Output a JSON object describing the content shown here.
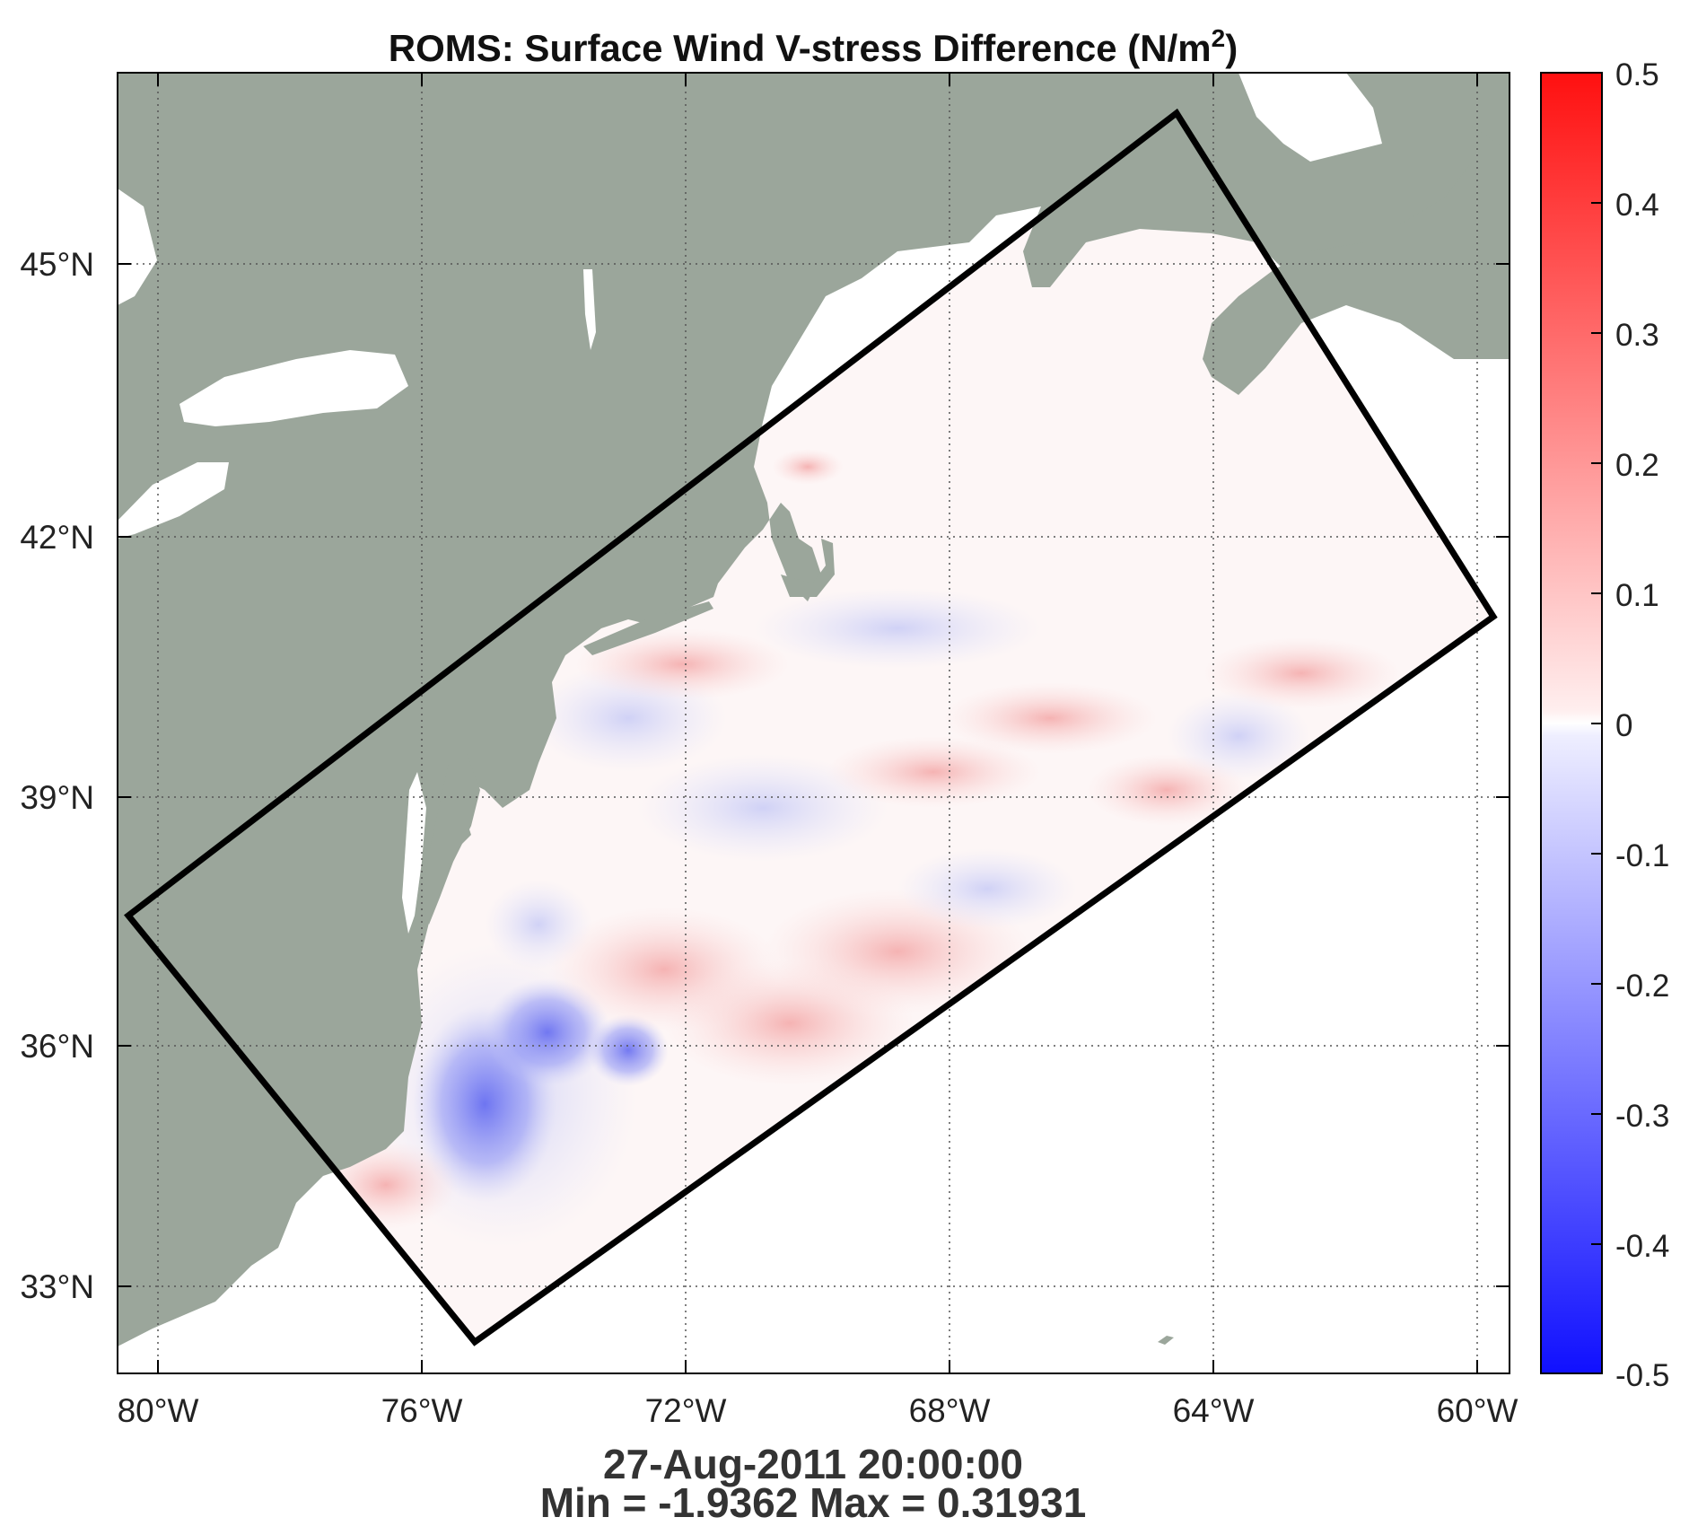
{
  "title": {
    "main": "ROMS: Surface Wind V-stress Difference (N/m",
    "sup": "2",
    "close": ")"
  },
  "map": {
    "lon_ticks": [
      "80°W",
      "76°W",
      "72°W",
      "68°W",
      "64°W",
      "60°W"
    ],
    "lat_ticks": [
      "45°N",
      "42°N",
      "39°N",
      "36°N",
      "33°N"
    ],
    "grid": "dotted",
    "land_color": "#9ba69b",
    "domain_box_color": "#000000"
  },
  "colorbar": {
    "ticks": [
      "0.5",
      "0.4",
      "0.3",
      "0.2",
      "0.1",
      "0",
      "-0.1",
      "-0.2",
      "-0.3",
      "-0.4",
      "-0.5"
    ],
    "min_color": "#1010ff",
    "mid_color": "#ffffff",
    "max_color": "#ff1a1a",
    "range": [
      -0.5,
      0.5
    ]
  },
  "footer": {
    "timestamp": "27-Aug-2011 20:00:00",
    "stats": "Min = -1.9362  Max = 0.31931"
  }
}
